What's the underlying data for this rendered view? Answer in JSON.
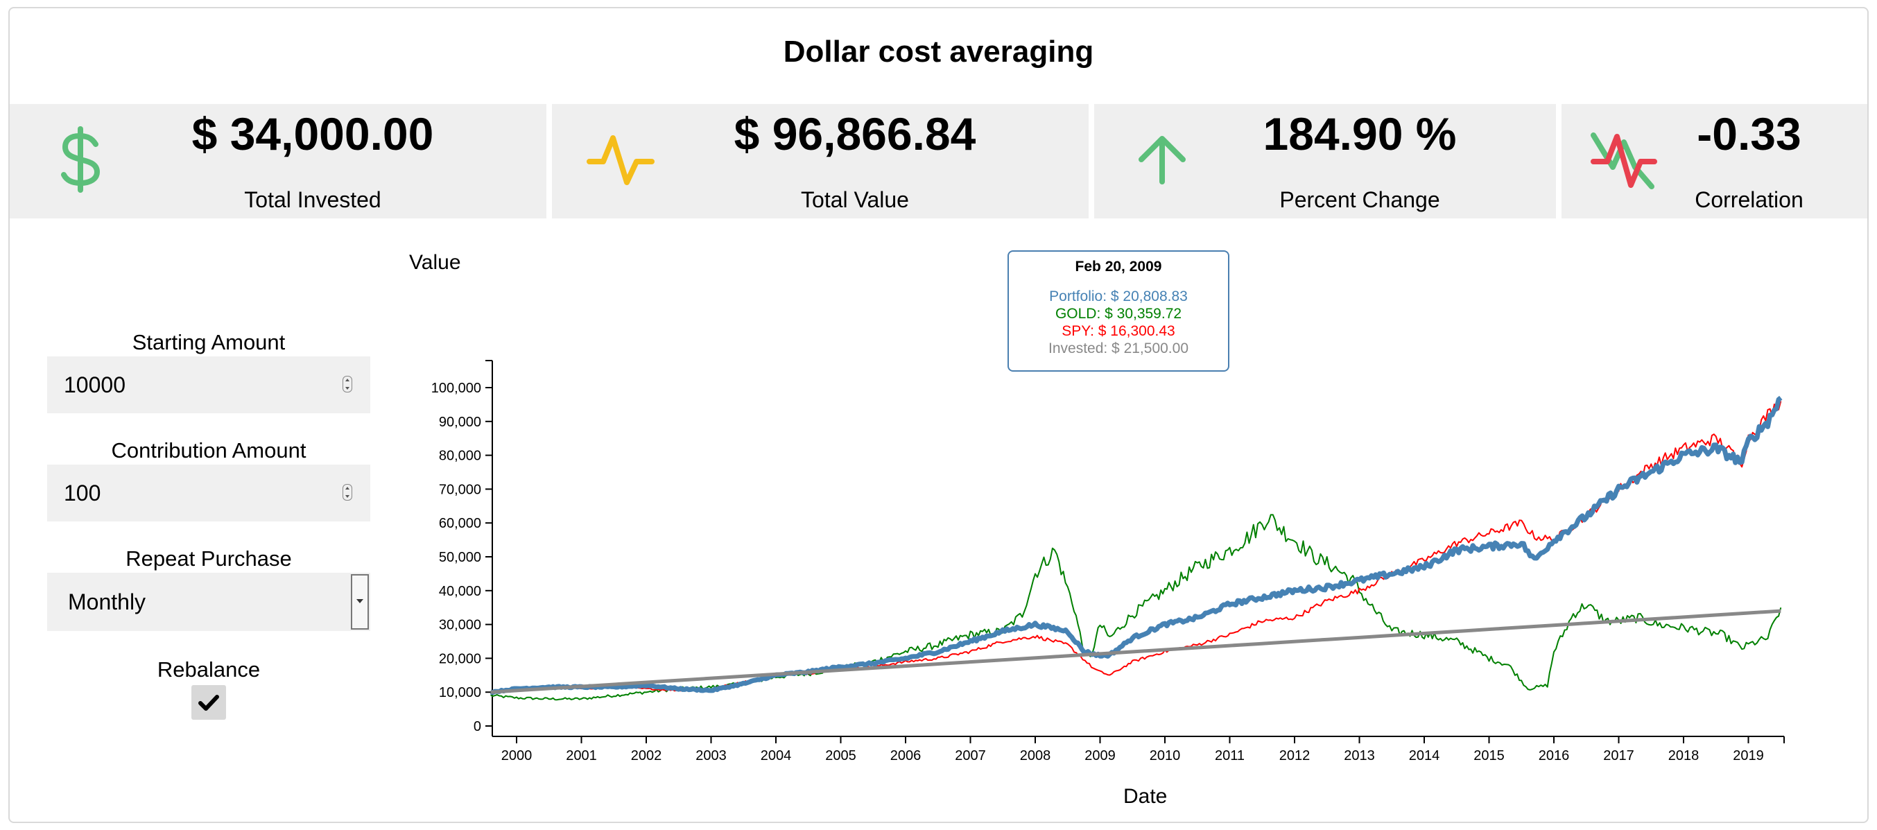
{
  "page": {
    "title": "Dollar cost averaging"
  },
  "stats": [
    {
      "value": "$ 34,000.00",
      "label": "Total Invested",
      "icon": "dollar-icon",
      "color": "#5cbf7a"
    },
    {
      "value": "$ 96,866.84",
      "label": "Total Value",
      "icon": "pulse-icon",
      "color": "#f5bd1a"
    },
    {
      "value": "184.90 %",
      "label": "Percent Change",
      "icon": "arrow-up-icon",
      "color": "#5cbf7a"
    },
    {
      "value": "-0.33",
      "label": "Correlation",
      "icon": "correlation-icon",
      "colors": [
        "#5cbf7a",
        "#e8404e"
      ]
    }
  ],
  "controls": {
    "starting_amount": {
      "label": "Starting Amount",
      "value": "10000"
    },
    "contribution_amount": {
      "label": "Contribution Amount",
      "value": "100"
    },
    "repeat_purchase": {
      "label": "Repeat Purchase",
      "value": "Monthly"
    },
    "rebalance": {
      "label": "Rebalance",
      "checked": true
    }
  },
  "tooltip": {
    "date": "Feb 20, 2009",
    "lines": [
      {
        "text": "Portfolio: $ 20,808.83",
        "color": "#4682b4"
      },
      {
        "text": "GOLD: $ 30,359.72",
        "color": "#008000"
      },
      {
        "text": "SPY: $ 16,300.43",
        "color": "#ff0000"
      },
      {
        "text": "Invested: $ 21,500.00",
        "color": "#888888"
      }
    ]
  },
  "chart_data": {
    "type": "line",
    "ylabel": "Value",
    "xlabel": "Date",
    "ylim": [
      0,
      100000
    ],
    "xlim": [
      1999.6,
      2019.55
    ],
    "yticks": [
      0,
      10000,
      20000,
      30000,
      40000,
      50000,
      60000,
      70000,
      80000,
      90000,
      100000
    ],
    "ytick_labels": [
      "0",
      "10,000",
      "20,000",
      "30,000",
      "40,000",
      "50,000",
      "60,000",
      "70,000",
      "80,000",
      "90,000",
      "100,000"
    ],
    "xticks": [
      2000,
      2001,
      2002,
      2003,
      2004,
      2005,
      2006,
      2007,
      2008,
      2009,
      2010,
      2011,
      2012,
      2013,
      2014,
      2015,
      2016,
      2017,
      2018,
      2019
    ],
    "xtick_labels": [
      "2000",
      "2001",
      "2002",
      "2003",
      "2004",
      "2005",
      "2006",
      "2007",
      "2008",
      "2009",
      "2010",
      "2011",
      "2012",
      "2013",
      "2014",
      "2015",
      "2016",
      "2017",
      "2018",
      "2019"
    ],
    "grid": false,
    "series": [
      {
        "name": "GOLD",
        "color": "#008000",
        "x": [
          1999.6,
          2000.0,
          2000.5,
          2001.0,
          2001.5,
          2002.0,
          2002.5,
          2003.0,
          2003.5,
          2004.0,
          2004.5,
          2005.0,
          2005.5,
          2006.0,
          2006.5,
          2007.0,
          2007.5,
          2007.8,
          2008.0,
          2008.3,
          2008.6,
          2008.75,
          2008.85,
          2009.0,
          2009.15,
          2009.5,
          2010.0,
          2010.5,
          2011.0,
          2011.3,
          2011.6,
          2011.8,
          2012.0,
          2012.3,
          2012.6,
          2012.9,
          2013.0,
          2013.2,
          2013.5,
          2014.0,
          2014.5,
          2015.0,
          2015.3,
          2015.6,
          2015.9,
          2016.0,
          2016.3,
          2016.5,
          2016.8,
          2017.0,
          2017.3,
          2017.6,
          2018.0,
          2018.3,
          2018.6,
          2018.9,
          2019.0,
          2019.3,
          2019.5
        ],
        "values": [
          9000,
          8300,
          8000,
          8000,
          9000,
          10000,
          11000,
          11500,
          12500,
          14500,
          15500,
          17000,
          19000,
          22000,
          24000,
          27000,
          28000,
          33000,
          45000,
          52000,
          35000,
          22000,
          20000,
          30000,
          26000,
          33000,
          40000,
          47000,
          52000,
          56000,
          62000,
          58000,
          55000,
          50000,
          47000,
          43000,
          40000,
          35000,
          28000,
          27000,
          25000,
          20000,
          18000,
          11000,
          12000,
          22000,
          33000,
          36000,
          31000,
          31000,
          32000,
          30000,
          29000,
          28000,
          27000,
          23000,
          24000,
          26000,
          35000
        ]
      },
      {
        "name": "SPY",
        "color": "#ff0000",
        "x": [
          1999.6,
          2000.0,
          2000.5,
          2001.0,
          2001.5,
          2002.0,
          2002.5,
          2003.0,
          2003.5,
          2004.0,
          2004.5,
          2005.0,
          2005.5,
          2006.0,
          2006.5,
          2007.0,
          2007.5,
          2008.0,
          2008.5,
          2008.9,
          2009.0,
          2009.15,
          2009.5,
          2010.0,
          2010.5,
          2011.0,
          2011.5,
          2012.0,
          2012.5,
          2013.0,
          2013.5,
          2014.0,
          2014.5,
          2015.0,
          2015.5,
          2015.7,
          2016.0,
          2016.5,
          2017.0,
          2017.5,
          2018.0,
          2018.5,
          2018.9,
          2019.0,
          2019.3,
          2019.5
        ],
        "values": [
          10000,
          11000,
          11500,
          11000,
          11500,
          11000,
          10500,
          11000,
          13000,
          15000,
          15500,
          17000,
          17500,
          19000,
          20000,
          22000,
          25000,
          26500,
          24000,
          17000,
          16000,
          15000,
          19000,
          22000,
          24000,
          27000,
          31000,
          32000,
          37000,
          40000,
          45000,
          49000,
          54000,
          57000,
          60000,
          56000,
          55000,
          62000,
          70000,
          77000,
          82000,
          85000,
          78000,
          85000,
          92000,
          96000
        ]
      },
      {
        "name": "Portfolio",
        "color": "#4682b4",
        "x": [
          1999.6,
          2000.0,
          2000.5,
          2001.0,
          2001.5,
          2002.0,
          2002.5,
          2003.0,
          2003.5,
          2004.0,
          2004.5,
          2005.0,
          2005.5,
          2006.0,
          2006.5,
          2007.0,
          2007.5,
          2008.0,
          2008.5,
          2008.75,
          2009.0,
          2009.15,
          2009.5,
          2010.0,
          2010.5,
          2011.0,
          2011.5,
          2012.0,
          2012.5,
          2013.0,
          2013.5,
          2014.0,
          2014.5,
          2015.0,
          2015.5,
          2015.7,
          2016.0,
          2016.5,
          2017.0,
          2017.5,
          2018.0,
          2018.5,
          2018.9,
          2019.0,
          2019.3,
          2019.5
        ],
        "values": [
          10000,
          11000,
          11500,
          11500,
          11500,
          12000,
          11000,
          10500,
          12500,
          15000,
          16000,
          17500,
          18500,
          20000,
          22000,
          25000,
          28000,
          30000,
          28000,
          22000,
          20800,
          21000,
          26000,
          30000,
          32000,
          36000,
          38000,
          40000,
          41000,
          43000,
          45000,
          47000,
          52000,
          53000,
          54000,
          49000,
          55000,
          62000,
          70000,
          75000,
          80000,
          82000,
          78000,
          84000,
          90000,
          97000
        ]
      },
      {
        "name": "Invested",
        "color": "#888888",
        "x": [
          1999.6,
          2019.5
        ],
        "values": [
          10000,
          34000
        ]
      }
    ]
  }
}
